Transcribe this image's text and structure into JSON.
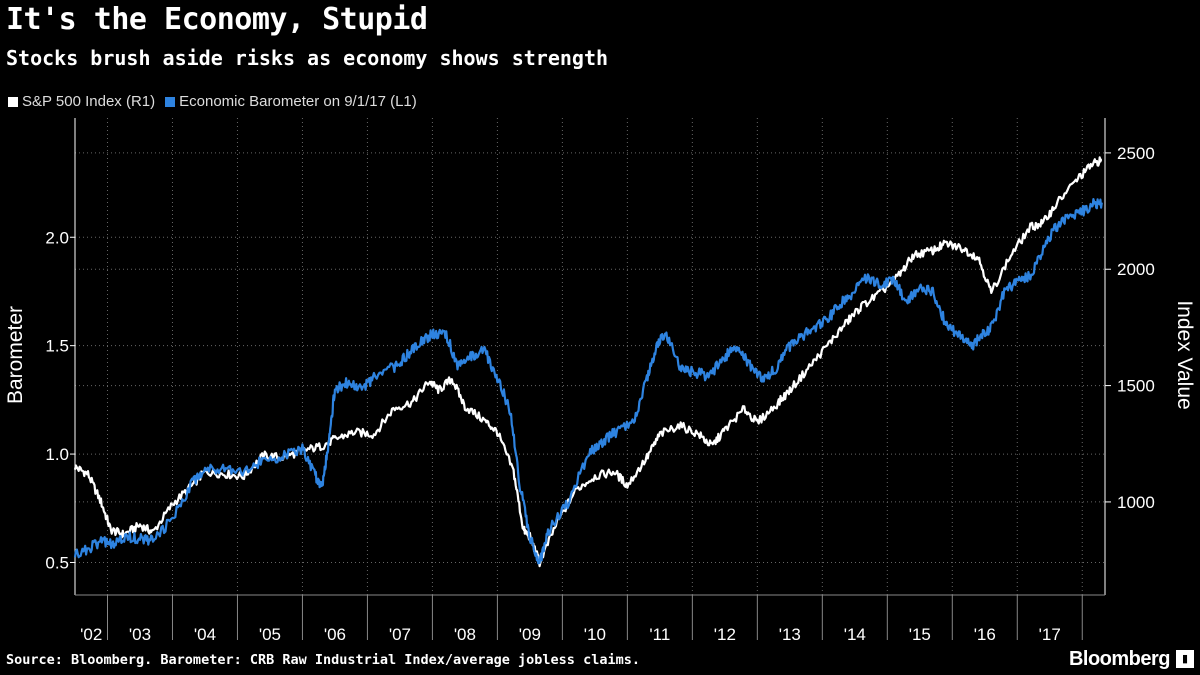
{
  "title": "It's the Economy, Stupid",
  "subtitle": "Stocks brush aside risks as economy shows strength",
  "legend": [
    {
      "label": "S&P 500 Index (R1)",
      "color": "#ffffff"
    },
    {
      "label": "Economic Barometer on 9/1/17 (L1)",
      "color": "#2e83e0"
    }
  ],
  "footer": {
    "source": "Source: Bloomberg. Barometer: CRB Raw Industrial Index/average jobless claims.",
    "brand": "Bloomberg"
  },
  "chart_data": {
    "type": "line",
    "title": "It's the Economy, Stupid",
    "xlabel": "",
    "x_tick_labels": [
      "'02",
      "'03",
      "'04",
      "'05",
      "'06",
      "'07",
      "'08",
      "'09",
      "'10",
      "'11",
      "'12",
      "'13",
      "'14",
      "'15",
      "'16",
      "'17"
    ],
    "xlim": [
      2002.0,
      2017.85
    ],
    "left_axis": {
      "label": "Barometer",
      "ylim": [
        0.35,
        2.55
      ],
      "ticks": [
        0.5,
        1.0,
        1.5,
        2.0
      ]
    },
    "right_axis": {
      "label": "Index Value",
      "ylim": [
        600,
        2650
      ],
      "ticks": [
        1000,
        1500,
        2000,
        2500
      ]
    },
    "series": [
      {
        "name": "S&P 500 Index (R1)",
        "axis": "right",
        "color": "#ffffff",
        "x": [
          2002.0,
          2002.2,
          2002.4,
          2002.55,
          2002.75,
          2003.0,
          2003.2,
          2003.5,
          2003.8,
          2004.0,
          2004.3,
          2004.6,
          2004.9,
          2005.2,
          2005.5,
          2005.8,
          2006.0,
          2006.3,
          2006.6,
          2006.9,
          2007.2,
          2007.45,
          2007.6,
          2007.8,
          2008.0,
          2008.3,
          2008.5,
          2008.75,
          2008.9,
          2009.0,
          2009.15,
          2009.4,
          2009.7,
          2010.0,
          2010.3,
          2010.5,
          2010.8,
          2011.0,
          2011.3,
          2011.6,
          2011.8,
          2012.0,
          2012.3,
          2012.5,
          2012.8,
          2013.0,
          2013.3,
          2013.6,
          2013.9,
          2014.1,
          2014.4,
          2014.7,
          2014.9,
          2015.2,
          2015.4,
          2015.65,
          2015.9,
          2016.1,
          2016.4,
          2016.7,
          2016.9,
          2017.1,
          2017.4,
          2017.65,
          2017.8
        ],
        "values": [
          1150,
          1120,
          1000,
          880,
          860,
          900,
          870,
          990,
          1070,
          1130,
          1120,
          1110,
          1200,
          1190,
          1220,
          1240,
          1270,
          1300,
          1290,
          1400,
          1430,
          1520,
          1480,
          1530,
          1410,
          1350,
          1300,
          1130,
          880,
          850,
          740,
          900,
          1050,
          1110,
          1130,
          1070,
          1190,
          1290,
          1330,
          1290,
          1240,
          1310,
          1400,
          1340,
          1420,
          1480,
          1580,
          1680,
          1780,
          1840,
          1900,
          1980,
          2060,
          2080,
          2110,
          2090,
          2050,
          1900,
          2060,
          2180,
          2200,
          2280,
          2380,
          2450,
          2470
        ]
      },
      {
        "name": "Economic Barometer on 9/1/17 (L1)",
        "axis": "left",
        "color": "#2e83e0",
        "x": [
          2002.0,
          2002.2,
          2002.4,
          2002.6,
          2002.8,
          2003.0,
          2003.2,
          2003.5,
          2003.8,
          2004.0,
          2004.3,
          2004.6,
          2004.9,
          2005.2,
          2005.5,
          2005.7,
          2005.8,
          2005.9,
          2006.0,
          2006.2,
          2006.4,
          2006.6,
          2006.9,
          2007.1,
          2007.3,
          2007.5,
          2007.7,
          2007.9,
          2008.1,
          2008.3,
          2008.5,
          2008.7,
          2008.85,
          2009.0,
          2009.15,
          2009.3,
          2009.6,
          2009.9,
          2010.1,
          2010.3,
          2010.6,
          2010.8,
          2010.95,
          2011.1,
          2011.3,
          2011.5,
          2011.75,
          2012.0,
          2012.2,
          2012.4,
          2012.6,
          2012.8,
          2013.0,
          2013.2,
          2013.4,
          2013.6,
          2013.8,
          2014.0,
          2014.2,
          2014.4,
          2014.6,
          2014.8,
          2015.0,
          2015.2,
          2015.4,
          2015.6,
          2015.8,
          2015.95,
          2016.1,
          2016.3,
          2016.5,
          2016.7,
          2016.9,
          2017.1,
          2017.3,
          2017.5,
          2017.65,
          2017.8
        ],
        "values": [
          0.54,
          0.56,
          0.6,
          0.58,
          0.62,
          0.61,
          0.6,
          0.7,
          0.87,
          0.93,
          0.94,
          0.92,
          0.97,
          0.99,
          1.02,
          0.9,
          0.85,
          1.05,
          1.3,
          1.33,
          1.3,
          1.35,
          1.4,
          1.45,
          1.52,
          1.55,
          1.56,
          1.4,
          1.45,
          1.48,
          1.35,
          1.2,
          0.85,
          0.62,
          0.5,
          0.65,
          0.78,
          1.0,
          1.05,
          1.1,
          1.14,
          1.35,
          1.5,
          1.56,
          1.4,
          1.38,
          1.36,
          1.45,
          1.5,
          1.4,
          1.35,
          1.4,
          1.5,
          1.55,
          1.58,
          1.63,
          1.7,
          1.75,
          1.82,
          1.78,
          1.8,
          1.7,
          1.77,
          1.75,
          1.6,
          1.55,
          1.5,
          1.55,
          1.58,
          1.75,
          1.8,
          1.82,
          1.95,
          2.05,
          2.1,
          2.12,
          2.15,
          2.16
        ]
      }
    ]
  }
}
